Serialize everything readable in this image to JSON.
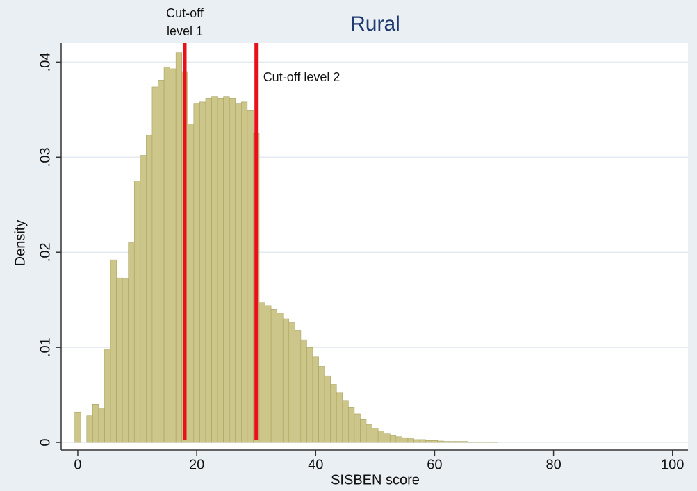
{
  "chart_data": {
    "type": "histogram",
    "title": "Rural",
    "x_label": "SISBEN score",
    "y_label": "Density",
    "bins": [
      -0.5,
      0.5,
      1.5,
      2.5,
      3.5,
      4.5,
      5.5,
      6.5,
      7.5,
      8.5,
      9.5,
      10.5,
      11.5,
      12.5,
      13.5,
      14.5,
      15.5,
      16.5,
      17.5,
      18.5,
      19.5,
      20.5,
      21.5,
      22.5,
      23.5,
      24.5,
      25.5,
      26.5,
      27.5,
      28.5,
      29.5,
      30.5,
      31.5,
      32.5,
      33.5,
      34.5,
      35.5,
      36.5,
      37.5,
      38.5,
      39.5,
      40.5,
      41.5,
      42.5,
      43.5,
      44.5,
      45.5,
      46.5,
      47.5,
      48.5,
      49.5,
      50.5,
      51.5,
      52.5,
      53.5,
      54.5,
      55.5,
      56.5,
      57.5,
      58.5,
      59.5,
      60.5,
      61.5,
      62.5,
      63.5,
      64.5,
      65.5,
      66.5,
      67.5,
      68.5,
      69.5,
      70.5
    ],
    "counts": [
      0.0032,
      0,
      0.0028,
      0.004,
      0.0036,
      0.0098,
      0.0192,
      0.0173,
      0.0172,
      0.021,
      0.0275,
      0.0302,
      0.0323,
      0.0374,
      0.0381,
      0.0395,
      0.0393,
      0.041,
      0.039,
      0.0335,
      0.0356,
      0.0358,
      0.0362,
      0.0364,
      0.0362,
      0.0364,
      0.0362,
      0.0356,
      0.0358,
      0.0349,
      0.0325,
      0.0147,
      0.0144,
      0.014,
      0.0136,
      0.013,
      0.0126,
      0.0118,
      0.0108,
      0.01,
      0.009,
      0.008,
      0.007,
      0.0061,
      0.0052,
      0.0044,
      0.0037,
      0.003,
      0.0024,
      0.0019,
      0.0015,
      0.0012,
      0.0009,
      0.0007,
      0.0006,
      0.0005,
      0.0004,
      0.0003,
      0.0003,
      0.0002,
      0.0002,
      0.00015,
      0.0001,
      0.0001,
      0.0001,
      0.0001,
      5e-05,
      5e-05,
      5e-05,
      5e-05,
      5e-05
    ],
    "color": "#cdc68a",
    "edge_color": "#a9a25f",
    "xlim": [
      -2.8,
      102.6
    ],
    "ylim": [
      -0.0008,
      0.042
    ],
    "xticks": [
      0,
      20,
      40,
      60,
      80,
      100
    ],
    "yticks": [
      0,
      {
        "value": 0.01,
        "label": ".01"
      },
      {
        "value": 0.02,
        "label": ".02"
      },
      {
        "value": 0.03,
        "label": ".03"
      },
      {
        "value": 0.04,
        "label": ".04"
      }
    ],
    "grid": true,
    "vlines": [
      {
        "x": 18,
        "label": [
          "Cut-off",
          "level 1"
        ],
        "color": "#e8101a"
      },
      {
        "x": 30,
        "label": [
          "Cut-off level 2"
        ],
        "color": "#e8101a"
      }
    ]
  }
}
